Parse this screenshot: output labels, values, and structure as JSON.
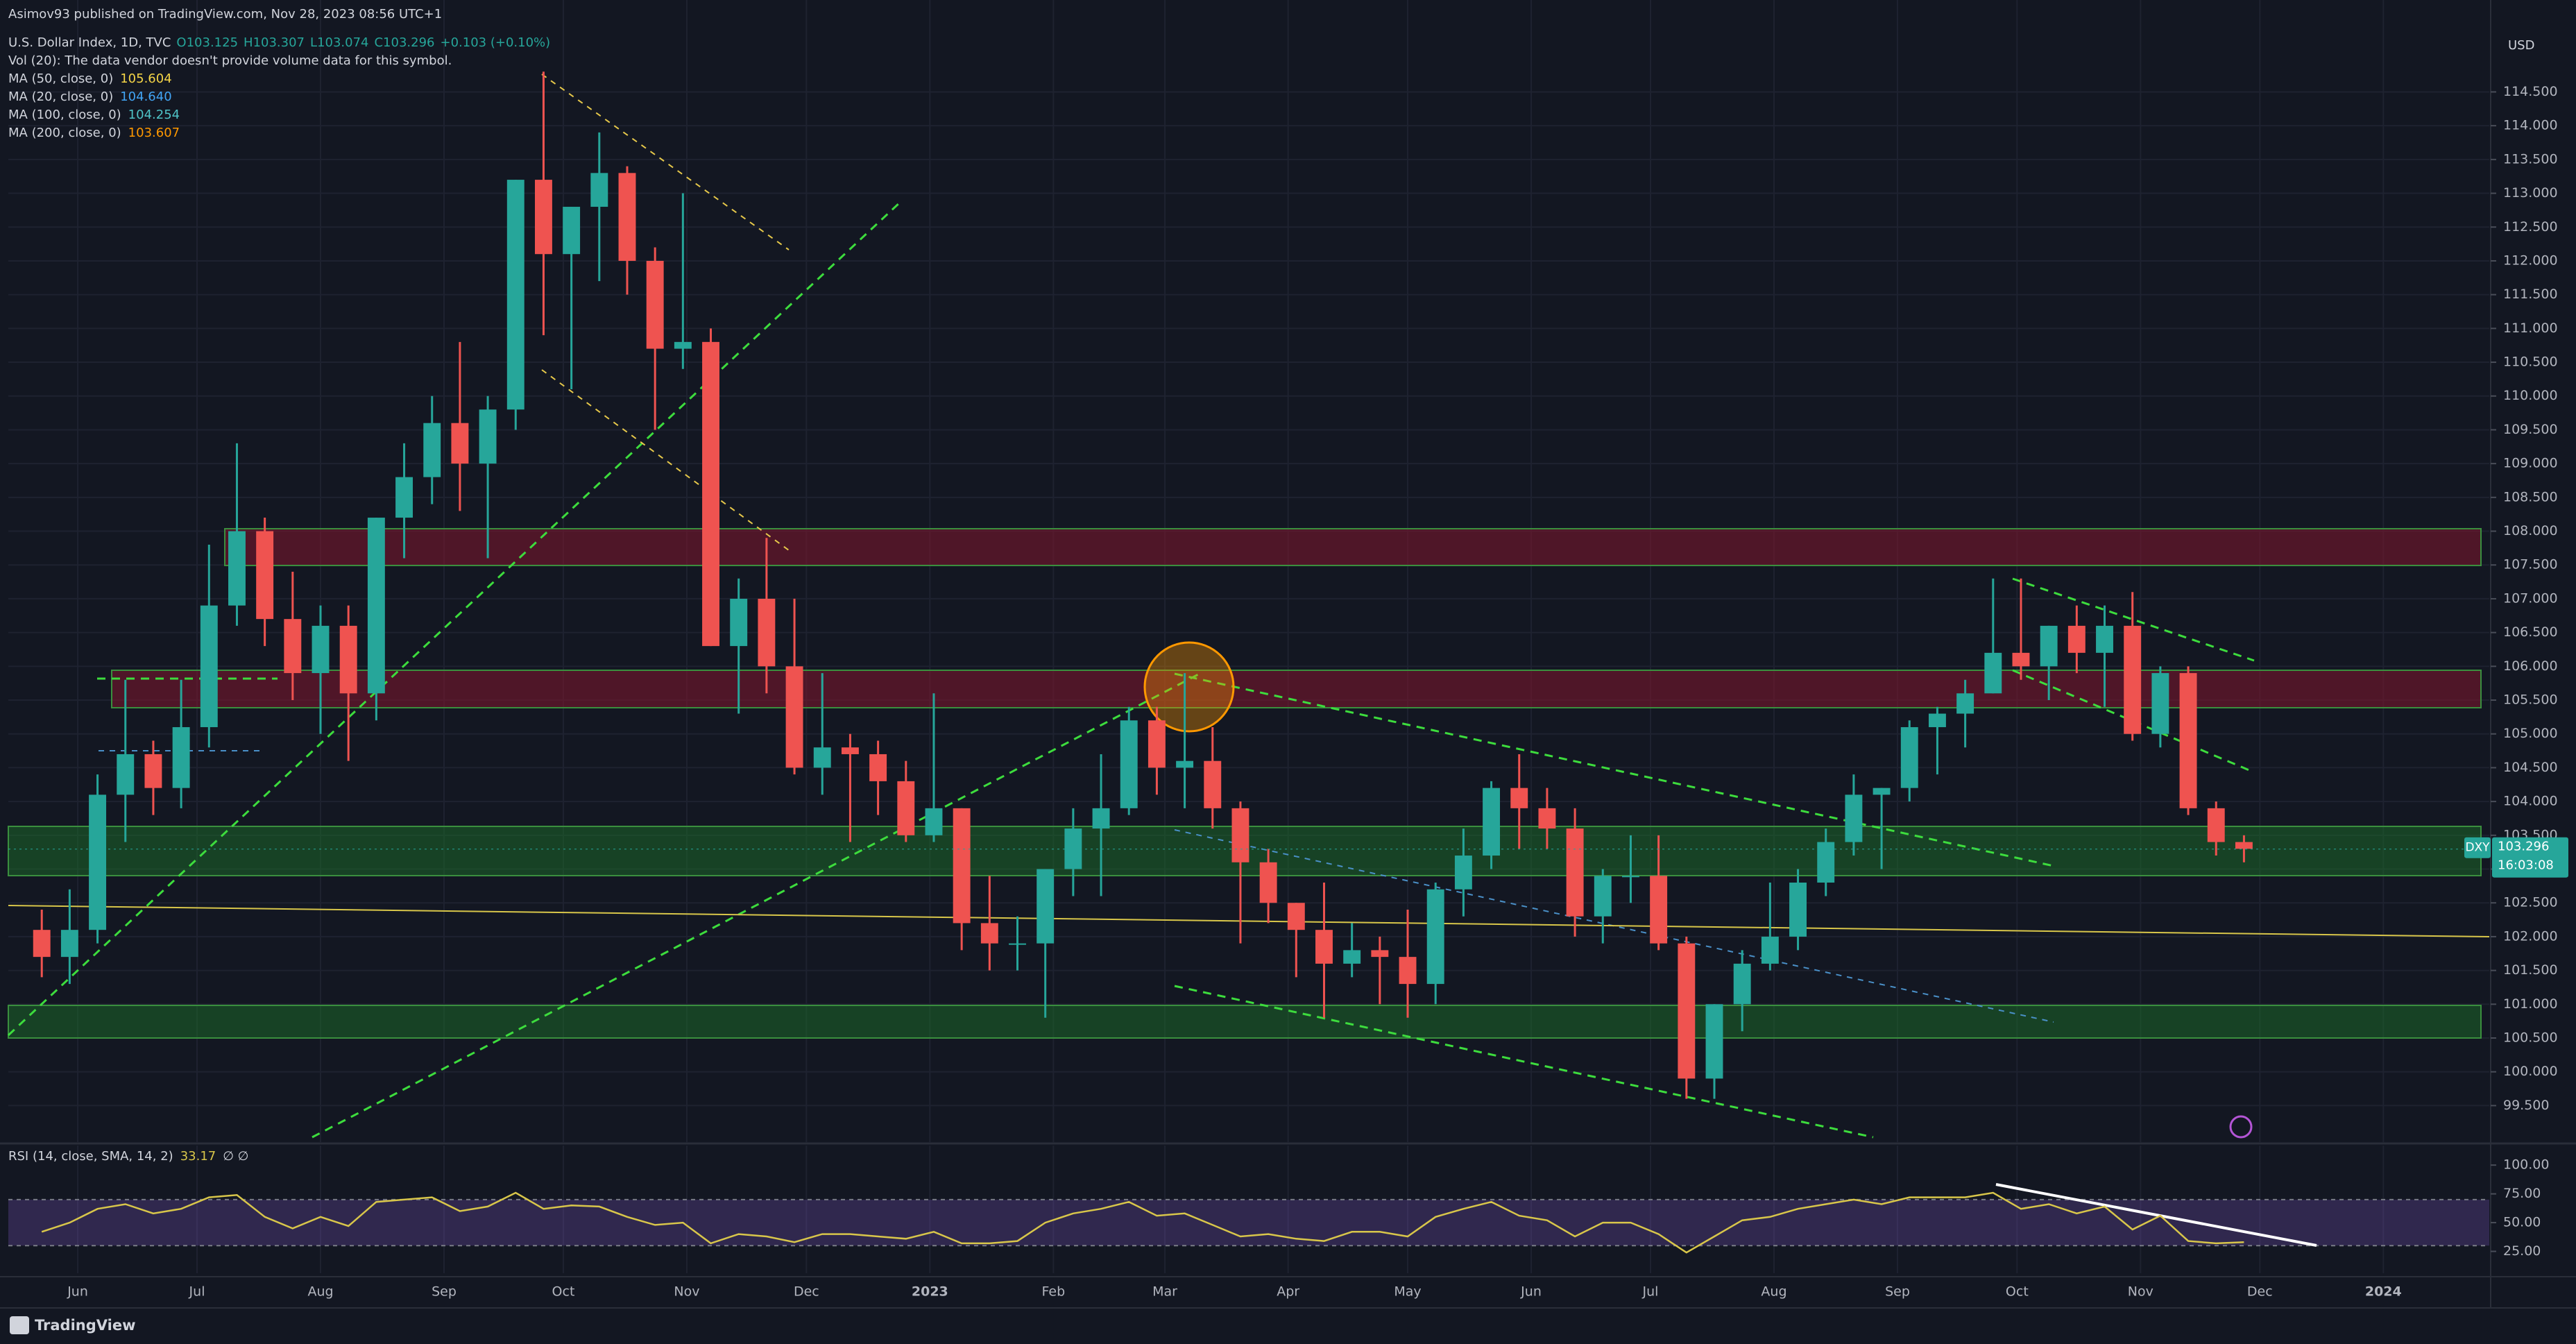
{
  "header": {
    "published": "Asimov93 published on TradingView.com, Nov 28, 2023 08:56 UTC+1"
  },
  "footer": {
    "brand": "TradingView"
  },
  "chart_data": [
    {
      "type": "candlestick",
      "legend": {
        "title": "U.S. Dollar Index, 1D, TVC",
        "ohlc": [
          "O103.125",
          "H103.307",
          "L103.074",
          "C103.296"
        ],
        "change": "+0.103 (+0.10%)",
        "volume": "Vol (20): The data vendor doesn't provide volume data for this symbol.",
        "indicators": [
          {
            "name": "MA (50, close, 0)",
            "value": "105.604",
            "color": "#f5d547"
          },
          {
            "name": "MA (20, close, 0)",
            "value": "104.640",
            "color": "#42a5f5"
          },
          {
            "name": "MA (100, close, 0)",
            "value": "104.254",
            "color": "#4fc3c7"
          },
          {
            "name": "MA (200, close, 0)",
            "value": "103.607",
            "color": "#ff9800"
          }
        ]
      },
      "currency": "USD",
      "symbol": "DXY",
      "last_price": 103.296,
      "countdown": "16:03:08",
      "up_color": "#26a69a",
      "down_color": "#ef5350",
      "open": [
        102.1,
        101.7,
        102.1,
        104.1,
        104.7,
        104.2,
        105.1,
        106.9,
        108.0,
        106.7,
        105.9,
        106.6,
        105.6,
        108.2,
        108.8,
        109.6,
        109.0,
        109.8,
        113.2,
        112.1,
        112.8,
        113.3,
        112.0,
        110.7,
        110.8,
        106.3,
        107.0,
        106.0,
        104.5,
        104.8,
        104.7,
        104.3,
        103.5,
        103.9,
        102.2,
        101.9,
        101.9,
        103.0,
        103.6,
        103.9,
        105.2,
        104.5,
        104.6,
        103.9,
        103.1,
        102.5,
        102.1,
        101.6,
        101.8,
        101.7,
        101.3,
        102.7,
        103.2,
        104.2,
        103.9,
        103.6,
        102.3,
        102.9,
        102.9,
        101.9,
        99.9,
        101.0,
        101.6,
        102.0,
        102.8,
        103.4,
        104.1,
        104.2,
        105.1,
        105.3,
        105.6,
        106.2,
        106.0,
        106.6,
        106.2,
        106.6,
        105.0,
        105.9,
        103.9,
        103.4
      ],
      "high": [
        102.4,
        102.7,
        104.4,
        105.8,
        104.9,
        105.8,
        107.8,
        109.3,
        108.2,
        107.4,
        106.9,
        106.9,
        108.2,
        109.3,
        110.0,
        110.8,
        110.0,
        113.2,
        114.8,
        112.8,
        113.9,
        113.4,
        112.2,
        113.0,
        111.0,
        107.3,
        107.9,
        107.0,
        105.9,
        105.0,
        104.9,
        104.6,
        105.6,
        103.9,
        102.9,
        102.3,
        103.0,
        103.9,
        104.7,
        105.4,
        105.4,
        105.9,
        105.1,
        104.0,
        103.3,
        102.5,
        102.8,
        102.2,
        102.0,
        102.4,
        102.8,
        103.6,
        104.3,
        104.7,
        104.2,
        103.9,
        103.0,
        103.5,
        103.5,
        102.0,
        101.0,
        101.8,
        102.8,
        103.0,
        103.6,
        104.4,
        104.2,
        105.2,
        105.4,
        105.8,
        107.3,
        107.3,
        106.6,
        106.9,
        106.9,
        107.1,
        106.0,
        106.0,
        104.0,
        103.5
      ],
      "low": [
        101.4,
        101.3,
        101.9,
        103.4,
        103.8,
        103.9,
        104.8,
        106.6,
        106.3,
        105.5,
        105.0,
        104.6,
        105.2,
        107.6,
        108.4,
        108.3,
        107.6,
        109.5,
        110.9,
        110.1,
        111.7,
        111.5,
        109.5,
        110.4,
        106.3,
        105.3,
        105.6,
        104.4,
        104.1,
        103.4,
        103.8,
        103.4,
        103.4,
        101.8,
        101.5,
        101.5,
        100.8,
        102.6,
        102.6,
        103.8,
        104.1,
        103.9,
        103.6,
        101.9,
        102.2,
        101.4,
        100.8,
        101.4,
        101.0,
        100.8,
        101.0,
        102.3,
        103.0,
        103.3,
        103.3,
        102.0,
        101.9,
        102.5,
        101.8,
        99.6,
        99.6,
        100.6,
        101.5,
        101.8,
        102.6,
        103.2,
        103.0,
        104.0,
        104.4,
        104.8,
        105.6,
        105.8,
        105.5,
        105.9,
        105.4,
        104.9,
        104.8,
        103.8,
        103.2,
        103.1
      ],
      "close": [
        101.7,
        102.1,
        104.1,
        104.7,
        104.2,
        105.1,
        106.9,
        108.0,
        106.7,
        105.9,
        106.6,
        105.6,
        108.2,
        108.8,
        109.6,
        109.0,
        109.8,
        113.2,
        112.1,
        112.8,
        113.3,
        112.0,
        110.7,
        110.8,
        106.3,
        107.0,
        106.0,
        104.5,
        104.8,
        104.7,
        104.3,
        103.5,
        103.9,
        102.2,
        101.9,
        101.9,
        103.0,
        103.6,
        103.9,
        105.2,
        104.5,
        104.6,
        103.9,
        103.1,
        102.5,
        102.1,
        101.6,
        101.8,
        101.7,
        101.3,
        102.7,
        103.2,
        104.2,
        103.9,
        103.6,
        102.3,
        102.9,
        102.9,
        101.9,
        99.9,
        101.0,
        101.6,
        102.0,
        102.8,
        103.4,
        104.1,
        104.2,
        105.1,
        105.3,
        105.6,
        106.2,
        106.0,
        106.6,
        106.2,
        106.6,
        105.0,
        105.9,
        103.9,
        103.4,
        103.3
      ],
      "xlim": [
        -1.2,
        87.8
      ],
      "xticks": [
        {
          "value": 1.29,
          "label": "Jun"
        },
        {
          "value": 5.57,
          "label": "Jul"
        },
        {
          "value": 10,
          "label": "Aug"
        },
        {
          "value": 14.43,
          "label": "Sep"
        },
        {
          "value": 18.71,
          "label": "Oct"
        },
        {
          "value": 23.14,
          "label": "Nov"
        },
        {
          "value": 27.43,
          "label": "Dec"
        },
        {
          "value": 31.86,
          "label": "2023"
        },
        {
          "value": 36.29,
          "label": "Feb"
        },
        {
          "value": 40.29,
          "label": "Mar"
        },
        {
          "value": 44.71,
          "label": "Apr"
        },
        {
          "value": 49,
          "label": "May"
        },
        {
          "value": 53.43,
          "label": "Jun"
        },
        {
          "value": 57.71,
          "label": "Jul"
        },
        {
          "value": 62.14,
          "label": "Aug"
        },
        {
          "value": 66.57,
          "label": "Sep"
        },
        {
          "value": 70.86,
          "label": "Oct"
        },
        {
          "value": 75.29,
          "label": "Nov"
        },
        {
          "value": 79.57,
          "label": "Dec"
        },
        {
          "value": 84,
          "label": "2024"
        }
      ],
      "ylim": [
        98.96,
        115.86
      ],
      "yticks": [
        {
          "value": 99.5,
          "label": "99.500"
        },
        {
          "value": 100,
          "label": "100.000"
        },
        {
          "value": 100.5,
          "label": "100.500"
        },
        {
          "value": 101,
          "label": "101.000"
        },
        {
          "value": 101.5,
          "label": "101.500"
        },
        {
          "value": 102,
          "label": "102.000"
        },
        {
          "value": 102.5,
          "label": "102.500"
        },
        {
          "value": 103,
          "label": "103.000"
        },
        {
          "value": 103.5,
          "label": "103.500"
        },
        {
          "value": 104,
          "label": "104.000"
        },
        {
          "value": 104.5,
          "label": "104.500"
        },
        {
          "value": 105,
          "label": "105.000"
        },
        {
          "value": 105.5,
          "label": "105.500"
        },
        {
          "value": 106,
          "label": "106.000"
        },
        {
          "value": 106.5,
          "label": "106.500"
        },
        {
          "value": 107,
          "label": "107.000"
        },
        {
          "value": 107.5,
          "label": "107.500"
        },
        {
          "value": 108,
          "label": "108.000"
        },
        {
          "value": 108.5,
          "label": "108.500"
        },
        {
          "value": 109,
          "label": "109.000"
        },
        {
          "value": 109.5,
          "label": "109.500"
        },
        {
          "value": 110,
          "label": "110.000"
        },
        {
          "value": 110.5,
          "label": "110.500"
        },
        {
          "value": 111,
          "label": "111.000"
        },
        {
          "value": 111.5,
          "label": "111.500"
        },
        {
          "value": 112,
          "label": "112.000"
        },
        {
          "value": 112.5,
          "label": "112.500"
        },
        {
          "value": 113,
          "label": "113.000"
        },
        {
          "value": 113.5,
          "label": "113.500"
        },
        {
          "value": 114,
          "label": "114.000"
        },
        {
          "value": 114.5,
          "label": "114.500"
        }
      ],
      "grid": true
    },
    {
      "type": "line",
      "name": "RSI (14, close, SMA, 14, 2)",
      "value_text": "33.17",
      "extra": "∅ ∅",
      "color": "#d8c64a",
      "values": [
        42,
        50,
        62,
        66,
        58,
        62,
        72,
        74,
        55,
        45,
        55,
        47,
        68,
        70,
        72,
        60,
        64,
        76,
        62,
        65,
        64,
        55,
        48,
        50,
        32,
        40,
        38,
        33,
        40,
        40,
        38,
        36,
        42,
        32,
        32,
        34,
        50,
        58,
        62,
        68,
        56,
        58,
        48,
        38,
        40,
        36,
        34,
        42,
        42,
        38,
        55,
        62,
        68,
        56,
        52,
        38,
        50,
        50,
        40,
        24,
        38,
        52,
        55,
        62,
        66,
        70,
        66,
        72,
        72,
        72,
        76,
        62,
        66,
        58,
        64,
        44,
        56,
        34,
        32,
        33
      ],
      "bands": [
        30,
        70
      ],
      "ylim": [
        6,
        117
      ],
      "yticks": [
        {
          "value": 25,
          "label": "25.00"
        },
        {
          "value": 50,
          "label": "50.00"
        },
        {
          "value": 75,
          "label": "75.00"
        },
        {
          "value": 100,
          "label": "100.00"
        }
      ]
    }
  ]
}
